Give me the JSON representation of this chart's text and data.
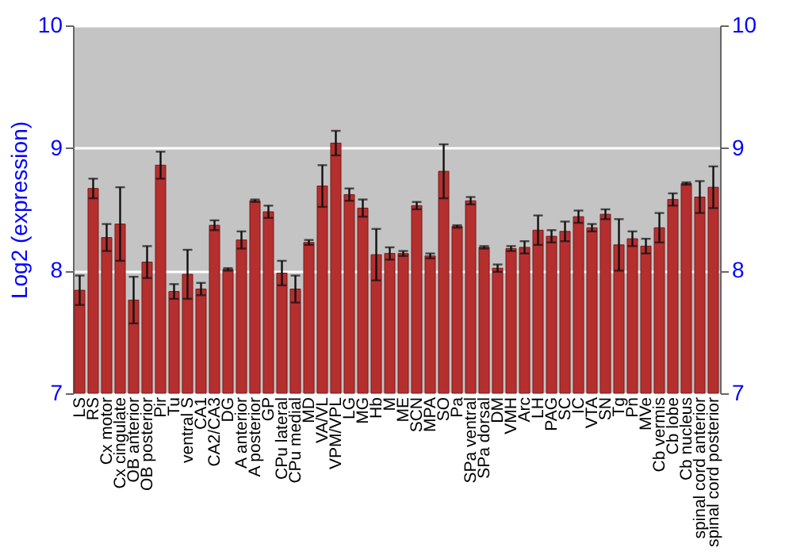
{
  "chart_data": {
    "type": "bar",
    "ylabel": "Log2 (expression)",
    "categories": [
      "LS",
      "RS",
      "Cx motor",
      "Cx cingulate",
      "OB anterior",
      "OB posterior",
      "Pir",
      "Tu",
      "ventral S",
      "CA1",
      "CA2/CA3",
      "DG",
      "A anterior",
      "A posterior",
      "GP",
      "CPu lateral",
      "CPu medial",
      "MD",
      "VA/VL",
      "VPM/VPL",
      "LG",
      "MG",
      "Hb",
      "M",
      "ME",
      "SCN",
      "MPA",
      "SO",
      "Pa",
      "SPa ventral",
      "SPa dorsal",
      "DM",
      "VMH",
      "Arc",
      "LH",
      "PAG",
      "SC",
      "IC",
      "VTA",
      "SN",
      "Tg",
      "Pn",
      "MVe",
      "Cb vermis",
      "Cb lobe",
      "Cb nucleus",
      "spinal cord anterior",
      "spinal cord posterior"
    ],
    "values": [
      7.84,
      8.67,
      8.27,
      8.38,
      7.76,
      8.07,
      8.86,
      7.83,
      7.97,
      7.85,
      8.37,
      8.01,
      8.25,
      8.57,
      8.48,
      7.98,
      7.85,
      8.23,
      8.69,
      9.04,
      8.62,
      8.51,
      8.13,
      8.14,
      8.14,
      8.53,
      8.12,
      8.81,
      8.36,
      8.57,
      8.19,
      8.02,
      8.18,
      8.19,
      8.33,
      8.28,
      8.32,
      8.44,
      8.35,
      8.46,
      8.21,
      8.26,
      8.2,
      8.35,
      8.58,
      8.71,
      8.6,
      8.68
    ],
    "errors": [
      0.12,
      0.08,
      0.11,
      0.3,
      0.19,
      0.13,
      0.11,
      0.06,
      0.2,
      0.05,
      0.04,
      0.01,
      0.07,
      0.01,
      0.05,
      0.1,
      0.11,
      0.02,
      0.17,
      0.1,
      0.05,
      0.07,
      0.21,
      0.05,
      0.02,
      0.03,
      0.02,
      0.22,
      0.01,
      0.03,
      0.01,
      0.03,
      0.02,
      0.05,
      0.12,
      0.05,
      0.08,
      0.05,
      0.03,
      0.04,
      0.21,
      0.06,
      0.06,
      0.12,
      0.05,
      0.01,
      0.13,
      0.17
    ],
    "color": "#b52f2f",
    "ylim": [
      7,
      10
    ],
    "yticks": [
      7,
      8,
      9,
      10
    ],
    "y2lim": [
      7,
      10
    ],
    "y2ticks": [
      7,
      8,
      9,
      10
    ],
    "grid": "y"
  }
}
